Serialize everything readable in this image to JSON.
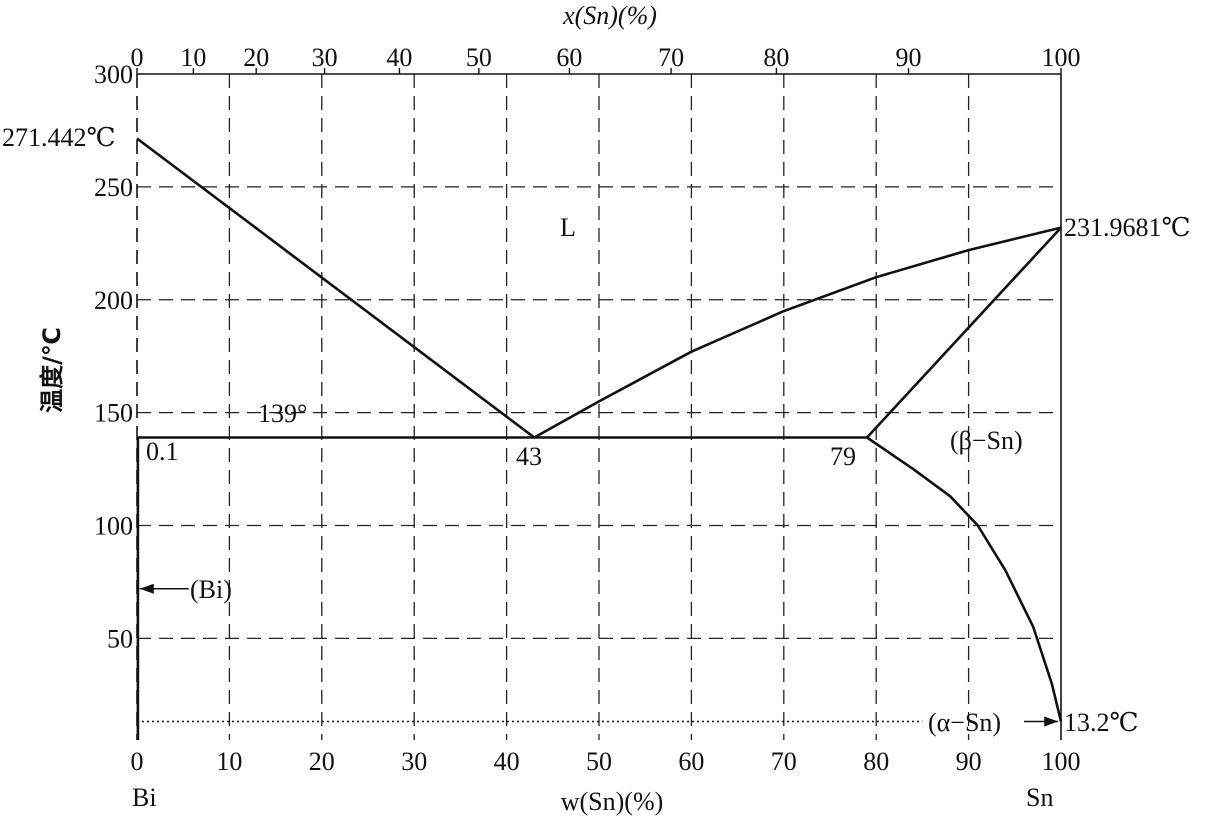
{
  "chart_data": {
    "type": "line",
    "title": "",
    "xlabel_bottom": "w(Sn)(%)",
    "xlabel_top": "x(Sn)(%)",
    "ylabel": "温度/℃",
    "xlim": [
      0,
      100
    ],
    "ylim": [
      5,
      300
    ],
    "grid": true,
    "x_ticks_bottom": [
      0,
      10,
      20,
      30,
      40,
      50,
      60,
      70,
      80,
      90,
      100
    ],
    "x_ticks_top": [
      0,
      10,
      20,
      30,
      40,
      50,
      60,
      70,
      80,
      90,
      100
    ],
    "x_ticks_top_positions_w": [
      0,
      6.1,
      12.9,
      20.3,
      28.4,
      37.0,
      46.8,
      57.8,
      69.2,
      83.5,
      100
    ],
    "y_ticks": [
      50,
      100,
      150,
      200,
      250,
      300
    ],
    "series": [
      {
        "key": "liquidus_bi",
        "x": [
          0,
          43
        ],
        "y": [
          271.442,
          139
        ]
      },
      {
        "key": "liquidus_sn",
        "x": [
          43,
          50,
          60,
          70,
          80,
          90,
          100
        ],
        "y": [
          139,
          155,
          177,
          195,
          210,
          222,
          231.9681
        ]
      },
      {
        "key": "eutectic",
        "x": [
          0.1,
          79
        ],
        "y": [
          139,
          139
        ]
      },
      {
        "key": "solidus_sn",
        "x": [
          79,
          100
        ],
        "y": [
          139,
          231.9681
        ]
      },
      {
        "key": "solvus_sn",
        "x": [
          79,
          84,
          88,
          91,
          94,
          97,
          99,
          100
        ],
        "y": [
          139,
          125,
          113,
          100,
          80,
          55,
          30,
          13.2
        ]
      },
      {
        "key": "solvus_bi",
        "x": [
          0.1,
          0.1
        ],
        "y": [
          139,
          5
        ]
      },
      {
        "key": "alpha_beta",
        "x": [
          0,
          85
        ],
        "y": [
          13.2,
          13.2
        ],
        "style": "dotted"
      }
    ],
    "annotations": [
      {
        "text": "271.442℃",
        "x": 0,
        "y": 271.442,
        "anchor": "left"
      },
      {
        "text": "231.9681℃",
        "x": 100,
        "y": 231.9681,
        "anchor": "right"
      },
      {
        "text": "L",
        "x": 47,
        "y": 233
      },
      {
        "text": "139°",
        "x": 14,
        "y": 146
      },
      {
        "text": "0.1",
        "x": 1.5,
        "y": 130
      },
      {
        "text": "43",
        "x": 43,
        "y": 127
      },
      {
        "text": "79",
        "x": 77,
        "y": 127
      },
      {
        "text": "(β−Sn)",
        "x": 93,
        "y": 134
      },
      {
        "text": "(Bi)",
        "x": 6,
        "y": 72
      },
      {
        "text": "(α−Sn)",
        "x": 93,
        "y": 13
      },
      {
        "text": "13.2℃",
        "x": 100,
        "y": 13.2,
        "anchor": "right"
      },
      {
        "text": "Bi",
        "x": 0,
        "y": "below"
      },
      {
        "text": "Sn",
        "x": 100,
        "y": "below"
      }
    ]
  }
}
